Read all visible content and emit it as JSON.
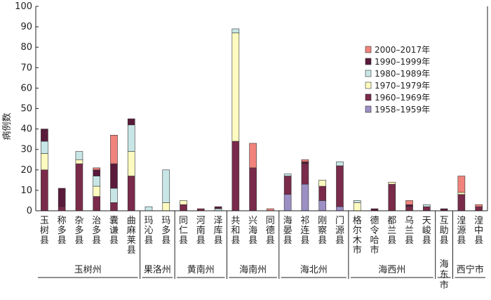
{
  "chart_data": {
    "type": "bar",
    "stacked": true,
    "ylabel": "病例数",
    "ylim": [
      0,
      100
    ],
    "yticks": [
      0,
      10,
      20,
      30,
      40,
      50,
      60,
      70,
      80,
      90,
      100
    ],
    "categories": [
      "玉树县",
      "称多县",
      "杂多县",
      "治多县",
      "囊谦县",
      "曲麻莱县",
      "玛沁县",
      "玛多县",
      "同仁县",
      "河南县",
      "泽库县",
      "共和县",
      "兴海县",
      "同德县",
      "海晏县",
      "祁连县",
      "刚察县",
      "门源县",
      "格尔木市",
      "德令哈市",
      "都兰县",
      "乌兰县",
      "天峻县",
      "互助县",
      "湟源县",
      "湟中县"
    ],
    "groups": [
      {
        "name": "玉树州",
        "categories": [
          "玉树县",
          "称多县",
          "杂多县",
          "治多县",
          "囊谦县",
          "曲麻莱县"
        ]
      },
      {
        "name": "果洛州",
        "categories": [
          "玛沁县",
          "玛多县"
        ]
      },
      {
        "name": "黄南州",
        "categories": [
          "同仁县",
          "河南县",
          "泽库县"
        ]
      },
      {
        "name": "海南州",
        "categories": [
          "共和县",
          "兴海县",
          "同德县"
        ]
      },
      {
        "name": "海北州",
        "categories": [
          "海晏县",
          "祁连县",
          "刚察县",
          "门源县"
        ]
      },
      {
        "name": "海西州",
        "categories": [
          "格尔木市",
          "德令哈市",
          "都兰县",
          "乌兰县",
          "天峻县"
        ]
      },
      {
        "name": "海东市",
        "categories": [
          "互助县"
        ]
      },
      {
        "name": "西宁市",
        "categories": [
          "湟源县",
          "湟中县"
        ]
      }
    ],
    "series": [
      {
        "name": "1958–1959年",
        "color": "#9b8fc4",
        "values": [
          0,
          0,
          0,
          0,
          0,
          0,
          0,
          0,
          0,
          0,
          0,
          0,
          0,
          0,
          8,
          13,
          5,
          2,
          0,
          0,
          0,
          0,
          0,
          0,
          0,
          0
        ]
      },
      {
        "name": "1960–1969年",
        "color": "#7a2a4a",
        "values": [
          20,
          2,
          23,
          7,
          4,
          17,
          0,
          0,
          3,
          1,
          0,
          34,
          21,
          0,
          9,
          10,
          7,
          20,
          0,
          0,
          13,
          2,
          2,
          0,
          8,
          2
        ]
      },
      {
        "name": "1970–1979年",
        "color": "#fdfbbf",
        "values": [
          8,
          0,
          2,
          5,
          0,
          12,
          0,
          4,
          2,
          0,
          0,
          53,
          0,
          0,
          0,
          0,
          3,
          0,
          4,
          0,
          1,
          0,
          0,
          0,
          1,
          0
        ]
      },
      {
        "name": "1980–1989年",
        "color": "#c8e6e6",
        "values": [
          6,
          0,
          4,
          5,
          7,
          13,
          2,
          16,
          0,
          0,
          1,
          2,
          0,
          0,
          1,
          0,
          0,
          2,
          1,
          0,
          0,
          0,
          1,
          0,
          0,
          0
        ]
      },
      {
        "name": "1990–1999年",
        "color": "#5a1a3a",
        "values": [
          6,
          9,
          0,
          3,
          12,
          3,
          0,
          0,
          0,
          0,
          1,
          0,
          0,
          0,
          0,
          1,
          0,
          0,
          0,
          1,
          0,
          1,
          0,
          1,
          0,
          0
        ]
      },
      {
        "name": "2000–2017年",
        "color": "#f0837c",
        "values": [
          0,
          0,
          0,
          1,
          14,
          0,
          0,
          0,
          0,
          0,
          0,
          0,
          12,
          1,
          0,
          1,
          0,
          0,
          0,
          0,
          0,
          2,
          0,
          0,
          8,
          1
        ]
      }
    ],
    "legend": {
      "position": "right",
      "order": [
        "2000–2017年",
        "1990–1999年",
        "1980–1989年",
        "1970–1979年",
        "1960–1969年",
        "1958–1959年"
      ]
    }
  }
}
